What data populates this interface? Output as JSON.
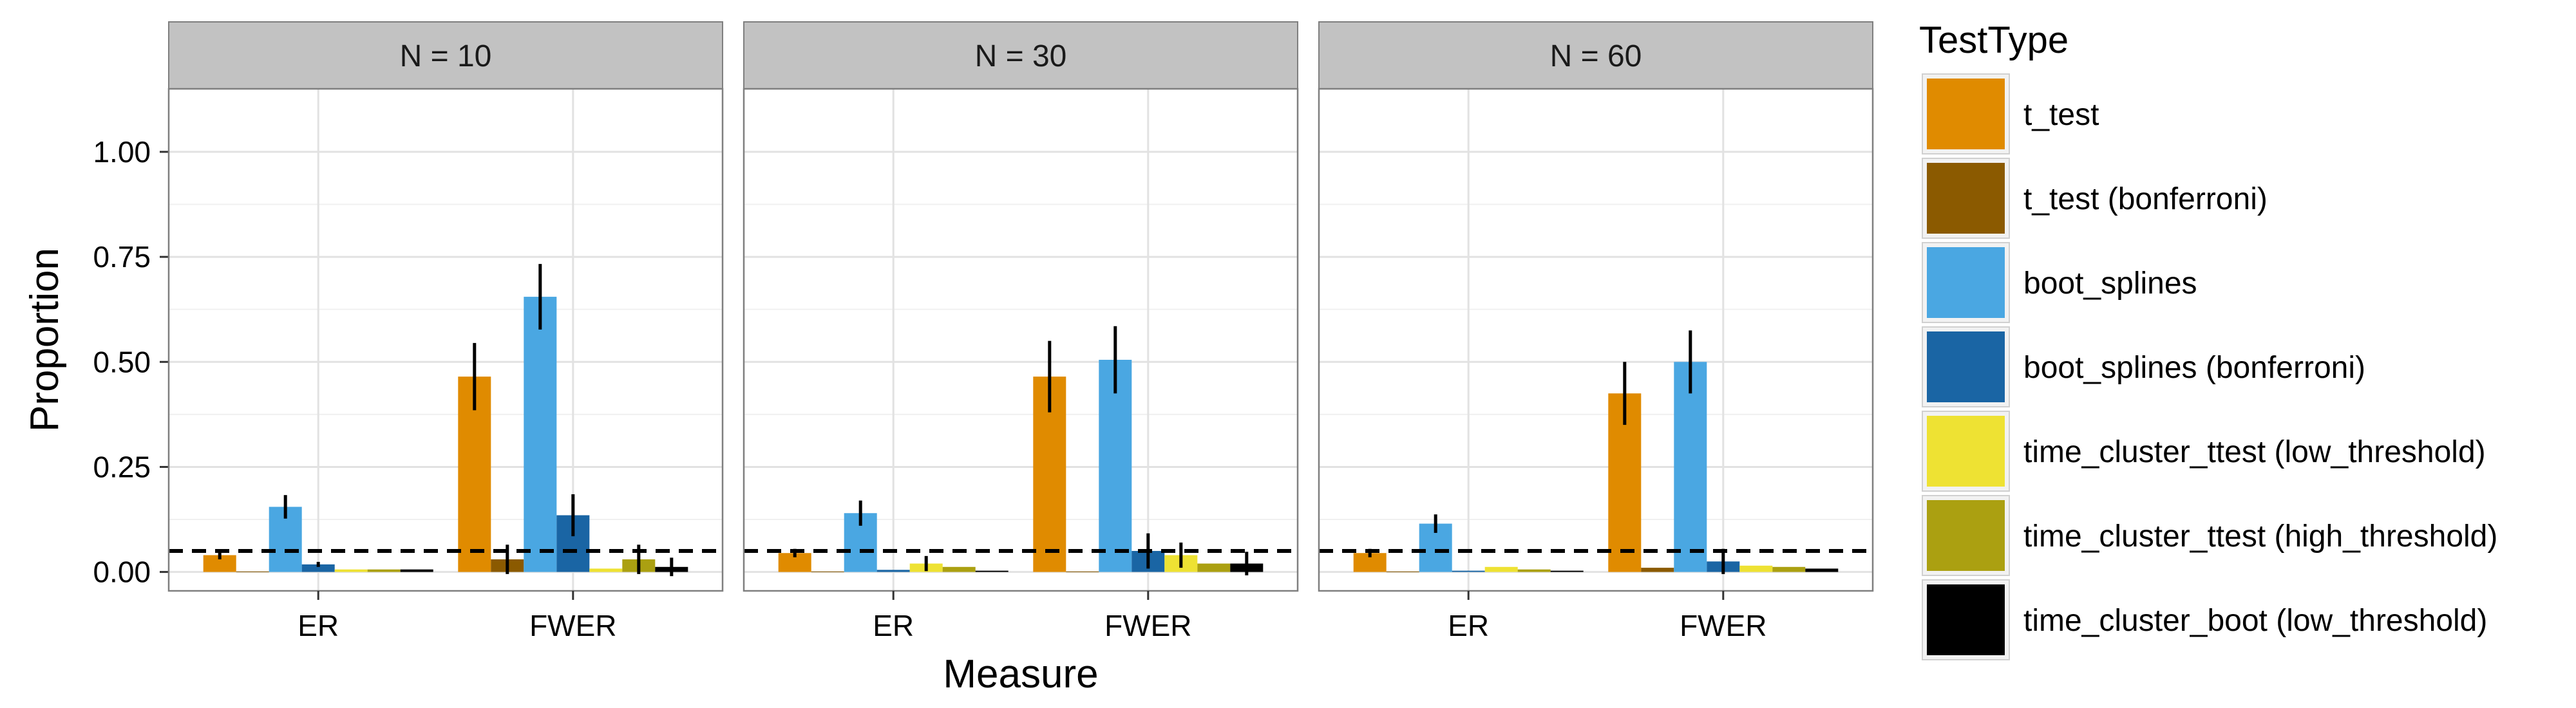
{
  "chart_data": {
    "type": "bar",
    "xlabel": "Measure",
    "ylabel": "Proportion",
    "ylim": [
      -0.045,
      1.15
    ],
    "yticks": [
      0.0,
      0.25,
      0.5,
      0.75,
      1.0
    ],
    "ytick_labels": [
      "0.00",
      "0.25",
      "0.50",
      "0.75",
      "1.00"
    ],
    "categories": [
      "ER",
      "FWER"
    ],
    "reference_line": 0.05,
    "grid": true,
    "legend": {
      "title": "TestType",
      "placement": "right",
      "entries": [
        {
          "label": "t_test",
          "color": "#E08B00"
        },
        {
          "label": "t_test (bonferroni)",
          "color": "#8B5A00"
        },
        {
          "label": "boot_splines",
          "color": "#4AA7E2"
        },
        {
          "label": "boot_splines (bonferroni)",
          "color": "#1A65A4"
        },
        {
          "label": "time_cluster_ttest (low_threshold)",
          "color": "#EEE233"
        },
        {
          "label": "time_cluster_ttest (high_threshold)",
          "color": "#ABA011"
        },
        {
          "label": "time_cluster_boot (low_threshold)",
          "color": "#000000"
        }
      ]
    },
    "panels": [
      {
        "label": "N = 10",
        "values": {
          "ER": [
            0.04,
            0.001,
            0.155,
            0.018,
            0.006,
            0.006,
            0.006
          ],
          "FWER": [
            0.465,
            0.03,
            0.655,
            0.135,
            0.008,
            0.03,
            0.012
          ]
        },
        "errors": {
          "ER": [
            0.01,
            0.0,
            0.028,
            0.006,
            0.0,
            0.0,
            0.0
          ],
          "FWER": [
            0.08,
            0.035,
            0.078,
            0.05,
            0.0,
            0.035,
            0.022
          ]
        }
      },
      {
        "label": "N = 30",
        "values": {
          "ER": [
            0.045,
            0.001,
            0.14,
            0.005,
            0.02,
            0.012,
            0.003
          ],
          "FWER": [
            0.465,
            0.001,
            0.505,
            0.05,
            0.04,
            0.02,
            0.02
          ]
        },
        "errors": {
          "ER": [
            0.01,
            0.0,
            0.03,
            0.0,
            0.018,
            0.0,
            0.0
          ],
          "FWER": [
            0.085,
            0.0,
            0.08,
            0.042,
            0.03,
            0.0,
            0.028
          ]
        }
      },
      {
        "label": "N = 60",
        "values": {
          "ER": [
            0.045,
            0.001,
            0.115,
            0.003,
            0.012,
            0.006,
            0.003
          ],
          "FWER": [
            0.425,
            0.01,
            0.5,
            0.025,
            0.015,
            0.012,
            0.008
          ]
        },
        "errors": {
          "ER": [
            0.01,
            0.0,
            0.022,
            0.0,
            0.0,
            0.0,
            0.0
          ],
          "FWER": [
            0.075,
            0.0,
            0.075,
            0.03,
            0.0,
            0.0,
            0.0
          ]
        }
      }
    ]
  }
}
